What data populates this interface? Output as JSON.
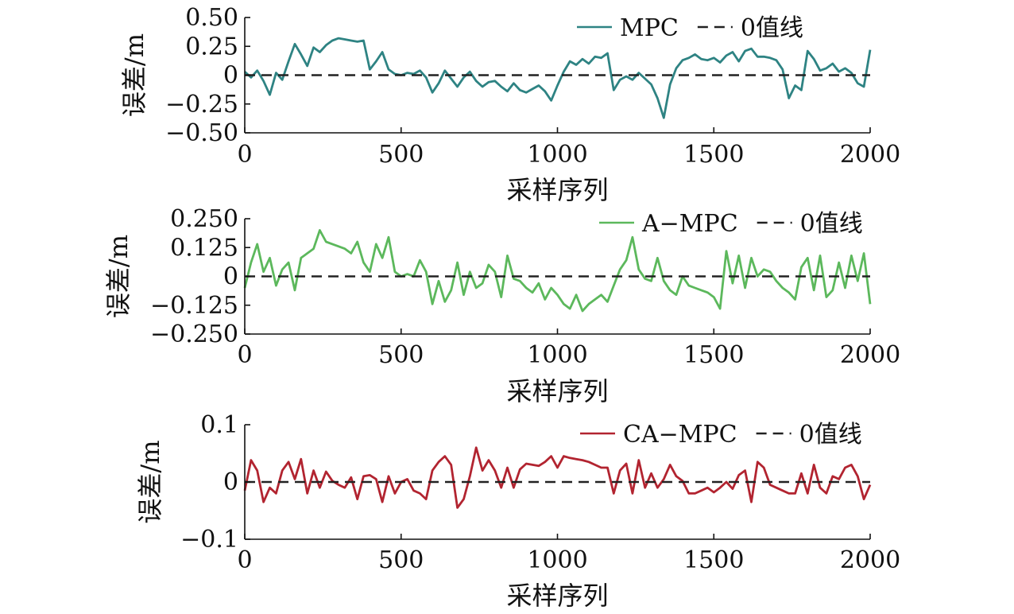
{
  "chart_data": [
    {
      "type": "line",
      "xlabel": "采样序列",
      "ylabel": "误差/m",
      "xlim": [
        0,
        2000
      ],
      "ylim": [
        -0.5,
        0.5
      ],
      "xticks": [
        0,
        500,
        1000,
        1500,
        2000
      ],
      "xtick_labels": [
        "0",
        "500",
        "1000",
        "1500",
        "2000"
      ],
      "yticks": [
        -0.5,
        -0.25,
        0,
        0.25,
        0.5
      ],
      "ytick_labels": [
        "−0.50",
        "−0.25",
        "0",
        "0.25",
        "0.50"
      ],
      "legend_position": "top-right",
      "series": [
        {
          "name": "MPC",
          "color": "#2e8383",
          "style": "solid",
          "x": [
            0,
            20,
            40,
            60,
            80,
            100,
            120,
            140,
            160,
            180,
            200,
            220,
            240,
            260,
            280,
            300,
            320,
            340,
            360,
            380,
            400,
            420,
            440,
            460,
            480,
            500,
            520,
            540,
            560,
            580,
            600,
            620,
            640,
            660,
            680,
            700,
            720,
            740,
            760,
            780,
            800,
            820,
            840,
            860,
            880,
            900,
            920,
            940,
            960,
            980,
            1000,
            1020,
            1040,
            1060,
            1080,
            1100,
            1120,
            1140,
            1160,
            1180,
            1200,
            1220,
            1240,
            1260,
            1280,
            1300,
            1320,
            1340,
            1360,
            1380,
            1400,
            1420,
            1440,
            1460,
            1480,
            1500,
            1520,
            1540,
            1560,
            1580,
            1600,
            1620,
            1640,
            1660,
            1680,
            1700,
            1720,
            1740,
            1760,
            1780,
            1800,
            1820,
            1840,
            1860,
            1880,
            1900,
            1920,
            1940,
            1960,
            1980,
            2000
          ],
          "y": [
            0.03,
            -0.02,
            0.04,
            -0.05,
            -0.17,
            0.02,
            -0.04,
            0.12,
            0.27,
            0.18,
            0.08,
            0.24,
            0.2,
            0.26,
            0.3,
            0.32,
            0.31,
            0.3,
            0.29,
            0.3,
            0.05,
            0.12,
            0.2,
            0.05,
            0.01,
            0.0,
            0.02,
            0.01,
            0.04,
            -0.02,
            -0.15,
            -0.07,
            0.04,
            -0.03,
            -0.1,
            -0.02,
            0.03,
            -0.05,
            -0.1,
            -0.06,
            -0.05,
            -0.1,
            -0.14,
            -0.07,
            -0.13,
            -0.15,
            -0.12,
            -0.09,
            -0.14,
            -0.22,
            -0.09,
            0.03,
            0.12,
            0.09,
            0.14,
            0.1,
            0.16,
            0.15,
            0.19,
            -0.13,
            -0.04,
            -0.01,
            -0.04,
            0.02,
            -0.03,
            -0.08,
            -0.2,
            -0.37,
            -0.08,
            0.06,
            0.13,
            0.15,
            0.18,
            0.14,
            0.13,
            0.15,
            0.11,
            0.17,
            0.2,
            0.12,
            0.21,
            0.23,
            0.16,
            0.16,
            0.15,
            0.13,
            0.05,
            -0.2,
            -0.09,
            -0.13,
            0.21,
            0.14,
            0.04,
            0.06,
            0.1,
            0.03,
            0.06,
            0.02,
            -0.07,
            -0.1,
            0.22
          ]
        },
        {
          "name": "0值线",
          "color": "#222222",
          "style": "dashed",
          "x": [
            0,
            2000
          ],
          "y": [
            0,
            0
          ]
        }
      ]
    },
    {
      "type": "line",
      "xlabel": "采样序列",
      "ylabel": "误差/m",
      "xlim": [
        0,
        2000
      ],
      "ylim": [
        -0.25,
        0.25
      ],
      "xticks": [
        0,
        500,
        1000,
        1500,
        2000
      ],
      "xtick_labels": [
        "0",
        "500",
        "1000",
        "1500",
        "2000"
      ],
      "yticks": [
        -0.25,
        -0.125,
        0,
        0.125,
        0.25
      ],
      "ytick_labels": [
        "−0.250",
        "−0.125",
        "0",
        "0.125",
        "0.250"
      ],
      "legend_position": "top-right",
      "series": [
        {
          "name": "A−MPC",
          "color": "#5cb85c",
          "style": "solid",
          "x": [
            0,
            20,
            40,
            60,
            80,
            100,
            120,
            140,
            160,
            180,
            200,
            220,
            240,
            260,
            280,
            300,
            320,
            340,
            360,
            380,
            400,
            420,
            440,
            460,
            480,
            500,
            520,
            540,
            560,
            580,
            600,
            620,
            640,
            660,
            680,
            700,
            720,
            740,
            760,
            780,
            800,
            820,
            840,
            860,
            880,
            900,
            920,
            940,
            960,
            980,
            1000,
            1020,
            1040,
            1060,
            1080,
            1100,
            1120,
            1140,
            1160,
            1180,
            1200,
            1220,
            1240,
            1260,
            1280,
            1300,
            1320,
            1340,
            1360,
            1380,
            1400,
            1420,
            1440,
            1460,
            1480,
            1500,
            1520,
            1540,
            1560,
            1580,
            1600,
            1620,
            1640,
            1660,
            1680,
            1700,
            1720,
            1740,
            1760,
            1780,
            1800,
            1820,
            1840,
            1860,
            1880,
            1900,
            1920,
            1940,
            1960,
            1980,
            2000
          ],
          "y": [
            -0.05,
            0.06,
            0.14,
            0.02,
            0.08,
            -0.04,
            0.03,
            0.06,
            -0.06,
            0.08,
            0.1,
            0.12,
            0.2,
            0.15,
            0.14,
            0.13,
            0.12,
            0.1,
            0.15,
            0.06,
            0.02,
            0.14,
            0.08,
            0.17,
            0.02,
            0.0,
            0.01,
            0.0,
            0.07,
            0.02,
            -0.12,
            -0.02,
            -0.11,
            -0.06,
            0.06,
            -0.08,
            0.02,
            -0.05,
            -0.03,
            0.05,
            0.02,
            -0.09,
            0.09,
            -0.01,
            -0.02,
            -0.05,
            -0.07,
            -0.03,
            -0.1,
            -0.05,
            -0.08,
            -0.12,
            -0.14,
            -0.08,
            -0.15,
            -0.12,
            -0.1,
            -0.08,
            -0.11,
            -0.04,
            0.03,
            0.07,
            0.17,
            0.03,
            -0.01,
            -0.02,
            0.08,
            -0.02,
            -0.06,
            -0.08,
            0.0,
            -0.04,
            -0.05,
            -0.06,
            -0.07,
            -0.09,
            -0.14,
            0.11,
            -0.03,
            0.09,
            -0.05,
            0.08,
            0.0,
            0.03,
            0.02,
            -0.02,
            -0.05,
            -0.07,
            -0.1,
            0.04,
            0.08,
            -0.06,
            0.09,
            -0.09,
            -0.06,
            0.06,
            -0.05,
            0.09,
            -0.02,
            0.1,
            -0.12
          ]
        },
        {
          "name": "0值线",
          "color": "#222222",
          "style": "dashed",
          "x": [
            0,
            2000
          ],
          "y": [
            0,
            0
          ]
        }
      ]
    },
    {
      "type": "line",
      "xlabel": "采样序列",
      "ylabel": "误差/m",
      "xlim": [
        0,
        2000
      ],
      "ylim": [
        -0.1,
        0.1
      ],
      "xticks": [
        0,
        500,
        1000,
        1500,
        2000
      ],
      "xtick_labels": [
        "0",
        "500",
        "1000",
        "1500",
        "2000"
      ],
      "yticks": [
        -0.1,
        0,
        0.1
      ],
      "ytick_labels": [
        "−0.1",
        "0",
        "0.1"
      ],
      "legend_position": "top-right",
      "series": [
        {
          "name": "CA−MPC",
          "color": "#b22430",
          "style": "solid",
          "x": [
            0,
            20,
            40,
            60,
            80,
            100,
            120,
            140,
            160,
            180,
            200,
            220,
            240,
            260,
            280,
            300,
            320,
            340,
            360,
            380,
            400,
            420,
            440,
            460,
            480,
            500,
            520,
            540,
            560,
            580,
            600,
            620,
            640,
            660,
            680,
            700,
            720,
            740,
            760,
            780,
            800,
            820,
            840,
            860,
            880,
            900,
            920,
            940,
            960,
            980,
            1000,
            1020,
            1040,
            1060,
            1080,
            1100,
            1120,
            1140,
            1160,
            1180,
            1200,
            1220,
            1240,
            1260,
            1280,
            1300,
            1320,
            1340,
            1360,
            1380,
            1400,
            1420,
            1440,
            1460,
            1480,
            1500,
            1520,
            1540,
            1560,
            1580,
            1600,
            1620,
            1640,
            1660,
            1680,
            1700,
            1720,
            1740,
            1760,
            1780,
            1800,
            1820,
            1840,
            1860,
            1880,
            1900,
            1920,
            1940,
            1960,
            1980,
            2000
          ],
          "y": [
            -0.015,
            0.038,
            0.02,
            -0.035,
            -0.01,
            -0.02,
            0.02,
            0.035,
            0.005,
            0.04,
            -0.02,
            0.02,
            -0.01,
            0.018,
            0.002,
            -0.005,
            -0.01,
            0.008,
            -0.03,
            0.01,
            0.012,
            0.005,
            -0.035,
            0.01,
            -0.02,
            0.0,
            0.005,
            -0.015,
            -0.02,
            -0.03,
            0.02,
            0.035,
            0.045,
            0.03,
            -0.045,
            -0.03,
            0.01,
            0.06,
            0.02,
            0.038,
            0.02,
            -0.01,
            0.025,
            -0.01,
            0.022,
            0.032,
            0.03,
            0.028,
            0.035,
            0.045,
            0.025,
            0.045,
            0.042,
            0.04,
            0.038,
            0.035,
            0.03,
            0.025,
            0.025,
            -0.02,
            0.02,
            0.032,
            -0.02,
            0.038,
            -0.01,
            0.015,
            -0.01,
            0.005,
            0.03,
            0.01,
            0.002,
            -0.02,
            -0.02,
            -0.015,
            -0.01,
            -0.018,
            -0.01,
            0.0,
            -0.012,
            0.012,
            0.02,
            -0.035,
            0.035,
            0.025,
            -0.005,
            -0.01,
            -0.015,
            -0.02,
            -0.02,
            0.015,
            -0.02,
            0.03,
            -0.01,
            -0.02,
            0.01,
            0.005,
            0.025,
            0.03,
            0.01,
            -0.03,
            -0.005
          ]
        },
        {
          "name": "0值线",
          "color": "#222222",
          "style": "dashed",
          "x": [
            0,
            2000
          ],
          "y": [
            0,
            0
          ]
        }
      ]
    }
  ]
}
